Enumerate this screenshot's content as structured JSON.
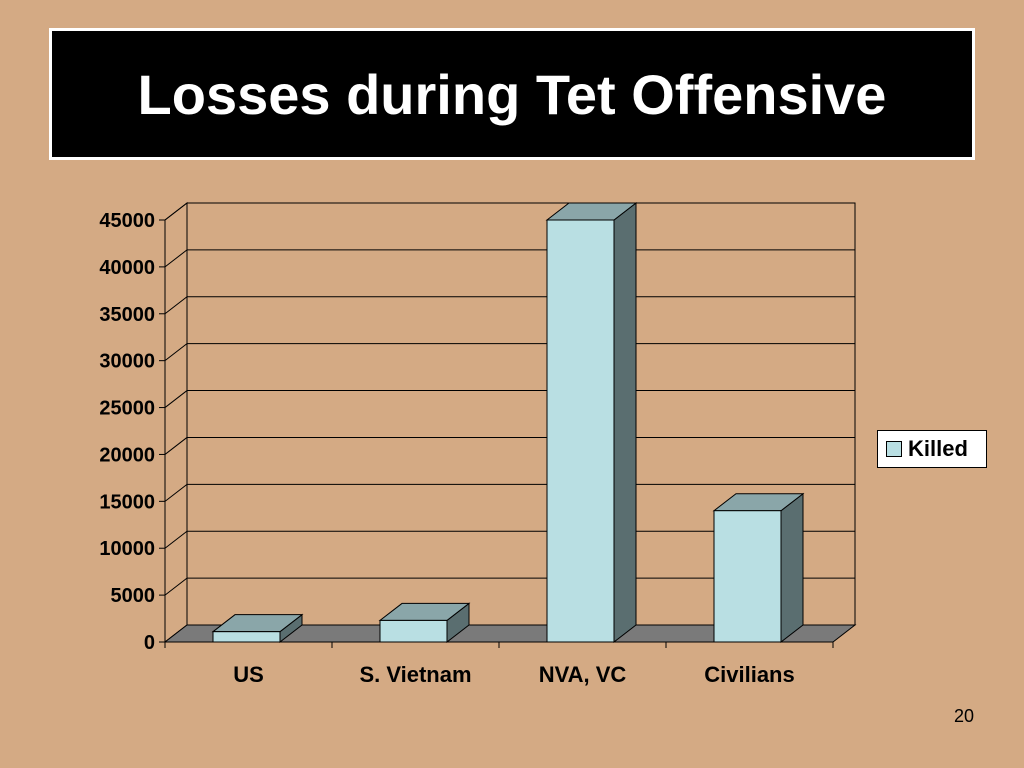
{
  "slide": {
    "title": "Losses during Tet Offensive",
    "page_number": "20"
  },
  "colors": {
    "background": "#d4aa84",
    "bar_front": "#b9dfe3",
    "bar_top": "#8aa6a9",
    "bar_side": "#5a6e70",
    "floor": "#7a7a7a"
  },
  "chart_data": {
    "type": "bar",
    "three_d": true,
    "categories": [
      "US",
      "S. Vietnam",
      "NVA, VC",
      "Civilians"
    ],
    "series": [
      {
        "name": "Killed",
        "values": [
          1100,
          2300,
          45000,
          14000
        ]
      }
    ],
    "yticks": [
      "0",
      "5000",
      "10000",
      "15000",
      "20000",
      "25000",
      "30000",
      "35000",
      "40000",
      "45000"
    ],
    "ylim": [
      0,
      45000
    ],
    "grid": true,
    "legend_position": "right"
  }
}
